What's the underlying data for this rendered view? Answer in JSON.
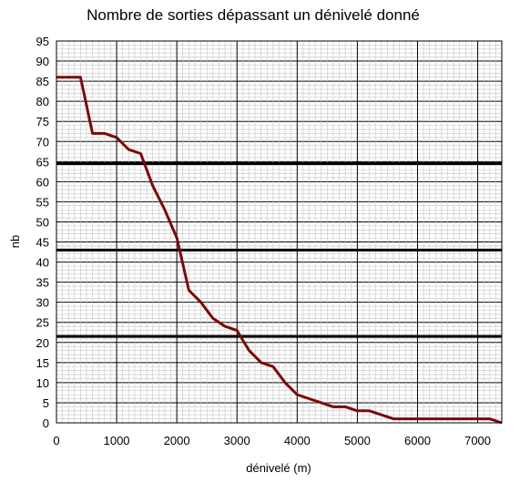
{
  "chart_data": {
    "type": "line",
    "title": "Nombre de sorties dépassant un dénivelé donné",
    "xlabel": "dénivelé (m)",
    "ylabel": "nb",
    "xlim": [
      0,
      7400
    ],
    "ylim": [
      0,
      95
    ],
    "x_ticks": [
      0,
      1000,
      2000,
      3000,
      4000,
      5000,
      6000,
      7000
    ],
    "y_ticks": [
      0,
      5,
      10,
      15,
      20,
      25,
      30,
      35,
      40,
      45,
      50,
      55,
      60,
      65,
      70,
      75,
      80,
      85,
      90,
      95
    ],
    "grid": true,
    "legend": "none",
    "series": [
      {
        "color": "#7a0a0a",
        "points": [
          [
            0,
            86
          ],
          [
            400,
            86
          ],
          [
            600,
            72
          ],
          [
            800,
            72
          ],
          [
            1000,
            71
          ],
          [
            1200,
            68
          ],
          [
            1400,
            67
          ],
          [
            1600,
            59
          ],
          [
            1800,
            53
          ],
          [
            2000,
            46
          ],
          [
            2200,
            33
          ],
          [
            2400,
            30
          ],
          [
            2600,
            26
          ],
          [
            2800,
            24
          ],
          [
            3000,
            23
          ],
          [
            3200,
            18
          ],
          [
            3400,
            15
          ],
          [
            3600,
            14
          ],
          [
            3800,
            10
          ],
          [
            4000,
            7
          ],
          [
            4200,
            6
          ],
          [
            4400,
            5
          ],
          [
            4600,
            4
          ],
          [
            4800,
            4
          ],
          [
            5000,
            3
          ],
          [
            5200,
            3
          ],
          [
            5400,
            2
          ],
          [
            5600,
            1
          ],
          [
            5800,
            1
          ],
          [
            6000,
            1
          ],
          [
            6200,
            1
          ],
          [
            6400,
            1
          ],
          [
            6600,
            1
          ],
          [
            6800,
            1
          ],
          [
            7000,
            1
          ],
          [
            7200,
            1
          ],
          [
            7400,
            0
          ]
        ]
      }
    ],
    "reference_lines": [
      {
        "y": 64.5,
        "color": "#000000"
      },
      {
        "y": 43,
        "color": "#000000"
      },
      {
        "y": 21.5,
        "color": "#000000"
      }
    ]
  }
}
